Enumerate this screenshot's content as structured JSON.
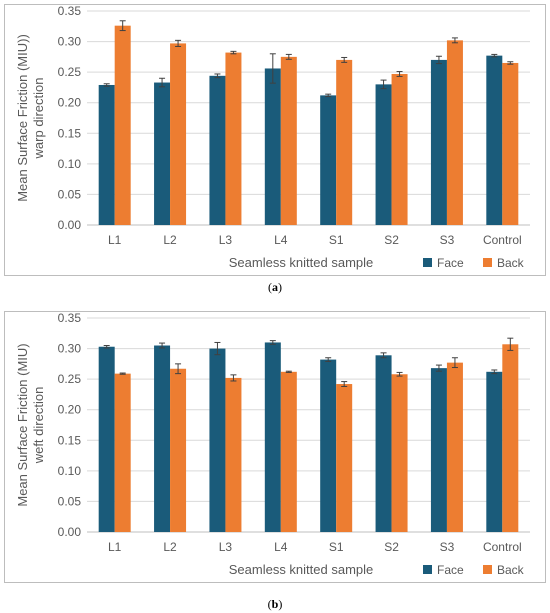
{
  "colors": {
    "face": "#1a5b7a",
    "back": "#ed7d31",
    "axis_text": "#595959",
    "grid": "#d9d9d9",
    "error_bar": "#404040"
  },
  "captions": [
    "a",
    "b"
  ],
  "chart_data": [
    {
      "type": "bar",
      "ylabel_lines": [
        "Mean Surface Friction (MIU))",
        "warp direction"
      ],
      "xlabel": "Seamless knitted sample",
      "categories": [
        "L1",
        "L2",
        "L3",
        "L4",
        "S1",
        "S2",
        "S3",
        "Control"
      ],
      "ylim": [
        0,
        0.35
      ],
      "yticks": [
        "0.00",
        "0.05",
        "0.10",
        "0.15",
        "0.20",
        "0.25",
        "0.30",
        "0.35"
      ],
      "grid": true,
      "legend_position": "bottom-right",
      "series": [
        {
          "name": "Face",
          "values": [
            0.229,
            0.233,
            0.244,
            0.256,
            0.212,
            0.23,
            0.27,
            0.277
          ],
          "errors": [
            0.002,
            0.007,
            0.003,
            0.024,
            0.002,
            0.007,
            0.006,
            0.002
          ]
        },
        {
          "name": "Back",
          "values": [
            0.326,
            0.297,
            0.282,
            0.275,
            0.27,
            0.247,
            0.302,
            0.265
          ],
          "errors": [
            0.008,
            0.005,
            0.002,
            0.004,
            0.004,
            0.004,
            0.004,
            0.002
          ]
        }
      ]
    },
    {
      "type": "bar",
      "ylabel_lines": [
        "Mean Surface Friction (MIU)",
        "weft direction"
      ],
      "xlabel": "Seamless knitted sample",
      "categories": [
        "L1",
        "L2",
        "L3",
        "L4",
        "S1",
        "S2",
        "S3",
        "Control"
      ],
      "ylim": [
        0,
        0.35
      ],
      "yticks": [
        "0.00",
        "0.05",
        "0.10",
        "0.15",
        "0.20",
        "0.25",
        "0.30",
        "0.35"
      ],
      "grid": true,
      "legend_position": "bottom-right",
      "series": [
        {
          "name": "Face",
          "values": [
            0.303,
            0.305,
            0.3,
            0.31,
            0.282,
            0.289,
            0.268,
            0.262
          ],
          "errors": [
            0.002,
            0.004,
            0.01,
            0.003,
            0.003,
            0.004,
            0.005,
            0.003
          ]
        },
        {
          "name": "Back",
          "values": [
            0.259,
            0.267,
            0.252,
            0.262,
            0.242,
            0.258,
            0.277,
            0.307
          ],
          "errors": [
            0.001,
            0.008,
            0.005,
            0.001,
            0.004,
            0.003,
            0.008,
            0.01
          ]
        }
      ]
    }
  ]
}
